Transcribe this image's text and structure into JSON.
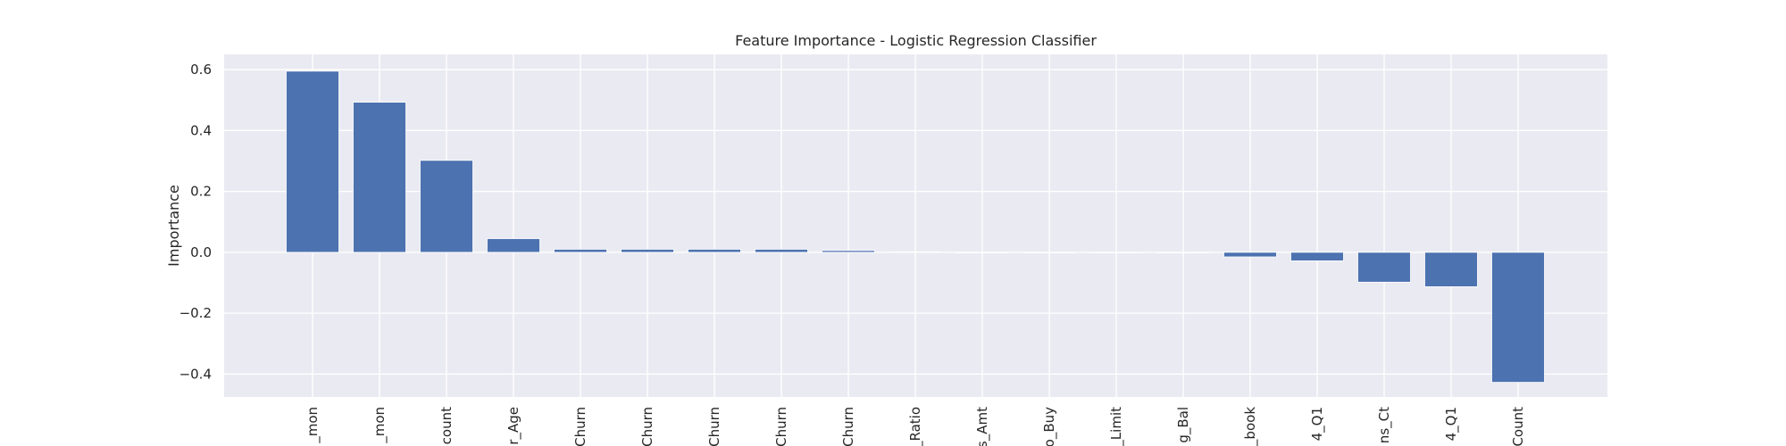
{
  "chart_data": {
    "type": "bar",
    "title": "Feature Importance - Logistic Regression Classifier",
    "xlabel": "",
    "ylabel": "Importance",
    "ylim": [
      -0.475,
      0.65
    ],
    "yticks": [
      0.6,
      0.4,
      0.2,
      0.0,
      -0.2,
      -0.4
    ],
    "ytick_labels": [
      "0.6",
      "0.4",
      "0.2",
      "0.0",
      "−0.2",
      "−0.4"
    ],
    "grid": true,
    "categories": [
      "_mon",
      "_mon",
      "count",
      "r_Age",
      "Churn",
      "Churn",
      "Churn",
      "Churn",
      "Churn",
      "_Ratio",
      "s_Amt",
      "o_Buy",
      "_Limit",
      "g_Bal",
      "_book",
      "4_Q1",
      "ns_Ct",
      "4_Q1",
      "Count"
    ],
    "values": [
      0.595,
      0.493,
      0.302,
      0.045,
      0.01,
      0.01,
      0.01,
      0.01,
      0.006,
      0.002,
      0.0,
      0.0,
      0.0,
      0.0,
      -0.015,
      -0.028,
      -0.098,
      -0.113,
      -0.427
    ],
    "colors": {
      "bar": "#4c72b0",
      "plot_background": "#eaeaf2",
      "grid": "#ffffff"
    }
  }
}
